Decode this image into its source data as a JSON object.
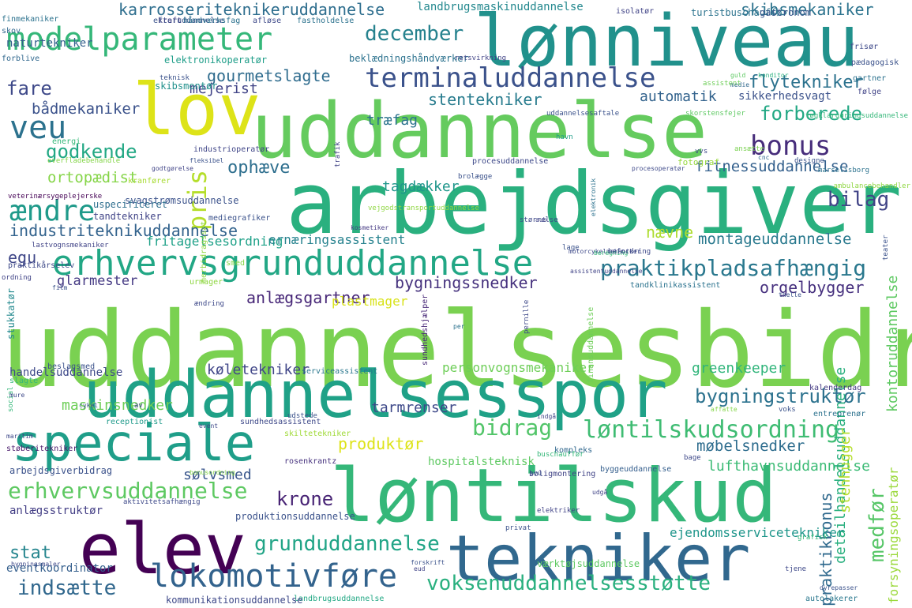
{
  "words": [
    {
      "text": "uddannelsesbidrag",
      "color": "#7ad151"
    },
    {
      "text": "arbejdsgiver",
      "color": "#2ab07f"
    },
    {
      "text": "uddannelse",
      "color": "#65cb5e"
    },
    {
      "text": "lønniveau",
      "color": "#21918c"
    },
    {
      "text": "løntilskud",
      "color": "#35b779"
    },
    {
      "text": "uddannelsesspor",
      "color": "#1fa187"
    },
    {
      "text": "lov",
      "color": "#dde318"
    },
    {
      "text": "elev",
      "color": "#440154"
    },
    {
      "text": "tekniker",
      "color": "#31688e"
    },
    {
      "text": "speciale",
      "color": "#1f9e89"
    },
    {
      "text": "modelparameter",
      "color": "#35b779"
    },
    {
      "text": "erhvervsgrunduddannelse",
      "color": "#22a785"
    },
    {
      "text": "terminaluddannelse",
      "color": "#3b528b"
    },
    {
      "text": "lokomotivføre",
      "color": "#33638d"
    },
    {
      "text": "veu",
      "color": "#2c728e"
    },
    {
      "text": "bonus",
      "color": "#472d7b"
    },
    {
      "text": "praktikpladsafhængig",
      "color": "#2a788e"
    },
    {
      "text": "erhvervsuddannelse",
      "color": "#5ec962"
    },
    {
      "text": "løntilskudsordning",
      "color": "#3fbc73"
    },
    {
      "text": "grunduddannelse",
      "color": "#20a486"
    },
    {
      "text": "voksenuddannelsesstøtte",
      "color": "#2ab07f"
    },
    {
      "text": "ændre",
      "color": "#1f9a8a"
    },
    {
      "text": "bidrag",
      "color": "#52c569"
    },
    {
      "text": "bilag",
      "color": "#414487"
    },
    {
      "text": "december",
      "color": "#26828e"
    },
    {
      "text": "karrosseriteknikeruddannelse",
      "color": "#2e6e8e"
    },
    {
      "text": "pris",
      "color": "#b5de2b"
    },
    {
      "text": "krone",
      "color": "#482475"
    },
    {
      "text": "indsætte",
      "color": "#30678d"
    },
    {
      "text": "bygningstruktør",
      "color": "#2c728e"
    },
    {
      "text": "medfør",
      "color": "#56c667"
    },
    {
      "text": "godkende",
      "color": "#22a884"
    },
    {
      "text": "forberede",
      "color": "#22a884"
    },
    {
      "text": "flytekniker",
      "color": "#2c728e"
    },
    {
      "text": "fare",
      "color": "#3e4989"
    },
    {
      "text": "stat",
      "color": "#25858e"
    },
    {
      "text": "industriteknikuddannelse",
      "color": "#33638d"
    },
    {
      "text": "ophæve",
      "color": "#2e6f8e"
    },
    {
      "text": "skibsmekaniker",
      "color": "#2c738e"
    },
    {
      "text": "praktikbonus",
      "color": "#306a8e"
    },
    {
      "text": "anlægsgartner",
      "color": "#482878"
    },
    {
      "text": "fitnessuddannelse",
      "color": "#34608d"
    },
    {
      "text": "montageuddannelse",
      "color": "#29798e"
    },
    {
      "text": "gourmetslagte",
      "color": "#2f6c8e"
    },
    {
      "text": "stentekniker",
      "color": "#287c8e"
    },
    {
      "text": "orgelbygger",
      "color": "#46307e"
    },
    {
      "text": "bygningssnedker",
      "color": "#46327e"
    },
    {
      "text": "produktør",
      "color": "#dde318"
    },
    {
      "text": "møbelsnedker",
      "color": "#2e6d8e"
    },
    {
      "text": "bådmekaniker",
      "color": "#3b528b"
    },
    {
      "text": "egu",
      "color": "#3f4788"
    },
    {
      "text": "nævne",
      "color": "#addc30"
    },
    {
      "text": "ortopædist",
      "color": "#86d549"
    },
    {
      "text": "mejerist",
      "color": "#414487"
    },
    {
      "text": "træfag",
      "color": "#2c738e"
    },
    {
      "text": "automatik",
      "color": "#33638d"
    },
    {
      "text": "tagdækker",
      "color": "#1f968b"
    },
    {
      "text": "sølvsmed",
      "color": "#39568c"
    },
    {
      "text": "lufthavnsuddannelse",
      "color": "#3bbb75"
    },
    {
      "text": "køletekniker",
      "color": "#404688"
    },
    {
      "text": "greenkeeper",
      "color": "#31b57b"
    },
    {
      "text": "personvognsmekaniker",
      "color": "#6ece58"
    },
    {
      "text": "detailhandelsuddannelse",
      "color": "#2ab07f"
    },
    {
      "text": "forsyningsoperatør",
      "color": "#9bd93c"
    },
    {
      "text": "kontoruddannelse",
      "color": "#5ec962"
    },
    {
      "text": "stenhugger",
      "color": "#b5de2b"
    },
    {
      "text": "maskinsnedker",
      "color": "#6ece58"
    },
    {
      "text": "tarmrenser",
      "color": "#3e4989"
    },
    {
      "text": "glarmester",
      "color": "#443983"
    },
    {
      "text": "fritagelsesordning",
      "color": "#1fa188"
    },
    {
      "text": "ernæringsassistent",
      "color": "#26828e"
    },
    {
      "text": "plastmager",
      "color": "#d8e219"
    },
    {
      "text": "ejendomsservicetekniker",
      "color": "#1f968b"
    },
    {
      "text": "naturtekniker",
      "color": "#34608d"
    },
    {
      "text": "sikkerhedsvagt",
      "color": "#3b528b"
    },
    {
      "text": "landbrugsmaskinuddannelse",
      "color": "#23888e"
    },
    {
      "text": "anlægsstruktør",
      "color": "#433e85"
    },
    {
      "text": "handelsuddannelse",
      "color": "#3e4989"
    },
    {
      "text": "eventkoordinator",
      "color": "#355f8d"
    },
    {
      "text": "værktøjsuddannelse",
      "color": "#5ec962"
    },
    {
      "text": "hospitalsteknisk",
      "color": "#5ec962"
    },
    {
      "text": "produktionsuddannelse",
      "color": "#3b528b"
    },
    {
      "text": "elektronikoperatør",
      "color": "#1f9e89"
    },
    {
      "text": "beklædningshåndværker",
      "color": "#2c728e"
    },
    {
      "text": "svagstrømsuddannelse",
      "color": "#3b528b"
    },
    {
      "text": "skibsmontør",
      "color": "#21918c"
    },
    {
      "text": "finmekaniker",
      "color": "#2c728e"
    },
    {
      "text": "turistbuschauffør",
      "color": "#2c738e"
    },
    {
      "text": "gastronom",
      "color": "#39568c"
    },
    {
      "text": "isolatør",
      "color": "#414487"
    },
    {
      "text": "fotograf",
      "color": "#98d83e"
    },
    {
      "text": "procesuddannelse",
      "color": "#3e4989"
    },
    {
      "text": "industrioperatør",
      "color": "#404688"
    },
    {
      "text": "mediegrafiker",
      "color": "#3b528b"
    },
    {
      "text": "tandtekniker",
      "color": "#414487"
    },
    {
      "text": "kranfører",
      "color": "#a8db34"
    },
    {
      "text": "uspecificeret",
      "color": "#2e6e8e"
    },
    {
      "text": "urmager",
      "color": "#90d743"
    },
    {
      "text": "smed",
      "color": "#85d54a"
    },
    {
      "text": "tandklinikassistent",
      "color": "#2c738e"
    },
    {
      "text": "serviceassistent",
      "color": "#2a778e"
    },
    {
      "text": "sundhedshjælper",
      "color": "#482878"
    },
    {
      "text": "stukkatør",
      "color": "#23898e"
    },
    {
      "text": "skiltetekniker",
      "color": "#a0da39"
    },
    {
      "text": "kompleks",
      "color": "#31688e"
    },
    {
      "text": "byggeuddannelse",
      "color": "#355f8d"
    },
    {
      "text": "boligmontering",
      "color": "#414487"
    },
    {
      "text": "rosenkrantz",
      "color": "#46327e"
    },
    {
      "text": "arbejdsgiverbidrag",
      "color": "#3b528b"
    },
    {
      "text": "støberitekniker",
      "color": "#48186a"
    },
    {
      "text": "entreprenør",
      "color": "#2c728e"
    },
    {
      "text": "receptionist",
      "color": "#1f9a8a"
    },
    {
      "text": "sundhedsassistent",
      "color": "#3e4989"
    },
    {
      "text": "landbrugsuddannelse",
      "color": "#22a884"
    },
    {
      "text": "kommunikationsuddannelse",
      "color": "#3e4989"
    },
    {
      "text": "autolakerer",
      "color": "#2a788e"
    },
    {
      "text": "finansuddannelse",
      "color": "#6ece58"
    },
    {
      "text": "skorstensfejer",
      "color": "#5ec962"
    },
    {
      "text": "kalenderdag",
      "color": "#443a83"
    },
    {
      "text": "frisør",
      "color": "#3e4989"
    },
    {
      "text": "pædagogisk",
      "color": "#3b528b"
    },
    {
      "text": "gartner",
      "color": "#2c728e"
    },
    {
      "text": "følge",
      "color": "#414487"
    },
    {
      "text": "skov",
      "color": "#31688e"
    },
    {
      "text": "forblive",
      "color": "#31688e"
    },
    {
      "text": "efteruddannelse",
      "color": "#3b528b"
    },
    {
      "text": "kraft",
      "color": "#414487"
    },
    {
      "text": "håndværksfag",
      "color": "#2c728e"
    },
    {
      "text": "afløse",
      "color": "#3e4989"
    },
    {
      "text": "fastholdelse",
      "color": "#2c728e"
    },
    {
      "text": "retsvirkning",
      "color": "#414487"
    },
    {
      "text": "teknisk",
      "color": "#3b528b"
    },
    {
      "text": "guld",
      "color": "#5ec962"
    },
    {
      "text": "konditor",
      "color": "#2ab07f"
    },
    {
      "text": "medie",
      "color": "#31688e"
    },
    {
      "text": "assistent",
      "color": "#6ece58"
    },
    {
      "text": "uddannelsesaftale",
      "color": "#3b528b"
    },
    {
      "text": "havn",
      "color": "#1f9e89"
    },
    {
      "text": "ansætte",
      "color": "#7ad151"
    },
    {
      "text": "tøgklargøringsuddannelse",
      "color": "#35b779"
    },
    {
      "text": "vvs",
      "color": "#3e4989"
    },
    {
      "text": "cnc",
      "color": "#31688e"
    },
    {
      "text": "designe",
      "color": "#3b528b"
    },
    {
      "text": "marselisborg",
      "color": "#2c728e"
    },
    {
      "text": "ambulancebehandler",
      "color": "#90d743"
    },
    {
      "text": "teater",
      "color": "#3b528b"
    },
    {
      "text": "overfladebehandle",
      "color": "#85d54a"
    },
    {
      "text": "energi",
      "color": "#35b779"
    },
    {
      "text": "fleksibel",
      "color": "#3b528b"
    },
    {
      "text": "godtgørelse",
      "color": "#414487"
    },
    {
      "text": "procesoperatør",
      "color": "#3e4989"
    },
    {
      "text": "brolægge",
      "color": "#3b528b"
    },
    {
      "text": "trafik",
      "color": "#414487"
    },
    {
      "text": "veterinærsygeplejerske",
      "color": "#440154"
    },
    {
      "text": "social",
      "color": "#35b779"
    },
    {
      "text": "vejgodstransportuddannelse",
      "color": "#90d743"
    },
    {
      "text": "kosmetiker",
      "color": "#443983"
    },
    {
      "text": "størrelse",
      "color": "#3e4989"
    },
    {
      "text": "aub",
      "color": "#414487"
    },
    {
      "text": "elektronik",
      "color": "#2c728e"
    },
    {
      "text": "lage",
      "color": "#3b528b"
    },
    {
      "text": "motorcykelmekaniker",
      "color": "#3e4989"
    },
    {
      "text": "assistentuddannelse",
      "color": "#414487"
    },
    {
      "text": "beregning",
      "color": "#35b779"
    },
    {
      "text": "befordring",
      "color": "#3e4989"
    },
    {
      "text": "lastvognsmekaniker",
      "color": "#414487"
    },
    {
      "text": "praktikårselev",
      "color": "#3e4989"
    },
    {
      "text": "ordning",
      "color": "#414487"
    },
    {
      "text": "film",
      "color": "#3b528b"
    },
    {
      "text": "merbidragssat",
      "color": "#90d743"
    },
    {
      "text": "ændring",
      "color": "#3e4989"
    },
    {
      "text": "thelle",
      "color": "#3b528b"
    },
    {
      "text": "pernille",
      "color": "#3e4989"
    },
    {
      "text": "per",
      "color": "#2c728e"
    },
    {
      "text": "beslagsmed",
      "color": "#3b528b"
    },
    {
      "text": "slagte",
      "color": "#35b779"
    },
    {
      "text": "mure",
      "color": "#3e4989"
    },
    {
      "text": "cykel",
      "color": "#3b528b"
    },
    {
      "text": "av",
      "color": "#414487"
    },
    {
      "text": "event",
      "color": "#3e4989"
    },
    {
      "text": "affatte",
      "color": "#85d54a"
    },
    {
      "text": "voks",
      "color": "#3b528b"
    },
    {
      "text": "maritim",
      "color": "#3e4989"
    },
    {
      "text": "udstede",
      "color": "#3b528b"
    },
    {
      "text": "indgå",
      "color": "#414487"
    },
    {
      "text": "bage",
      "color": "#3e4989"
    },
    {
      "text": "buschauffør",
      "color": "#35b779"
    },
    {
      "text": "svu",
      "color": "#3b528b"
    },
    {
      "text": "udgå",
      "color": "#414487"
    },
    {
      "text": "bonusordning",
      "color": "#85d54a"
    },
    {
      "text": "aktivitetsafhængig",
      "color": "#3e4989"
    },
    {
      "text": "elektriker",
      "color": "#414487"
    },
    {
      "text": "privat",
      "color": "#3b528b"
    },
    {
      "text": "grafisk",
      "color": "#35b779"
    },
    {
      "text": "bygningsmaler",
      "color": "#3e4989"
    },
    {
      "text": "forskrift",
      "color": "#3b528b"
    },
    {
      "text": "eud",
      "color": "#414487"
    },
    {
      "text": "tjene",
      "color": "#3e4989"
    },
    {
      "text": "dyrepasser",
      "color": "#3b528b"
    }
  ]
}
